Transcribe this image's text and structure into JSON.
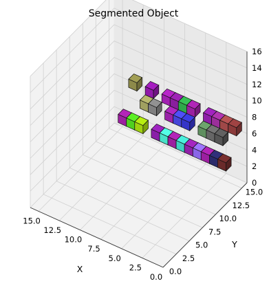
{
  "chart_data": {
    "type": "scatter",
    "subtype": "3d-voxels",
    "title": "Segmented Object",
    "xlabel": "X",
    "ylabel": "Y",
    "zlabel": "",
    "xlim": [
      0,
      16
    ],
    "ylim": [
      0,
      16
    ],
    "zlim": [
      0,
      16
    ],
    "x_ticks": [
      "0.0",
      "2.5",
      "5.0",
      "7.5",
      "10.0",
      "12.5",
      "15.0"
    ],
    "y_ticks": [
      "0.0",
      "2.5",
      "5.0",
      "7.5",
      "10.0",
      "12.5",
      "15.0"
    ],
    "z_ticks": [
      "0",
      "2",
      "4",
      "6",
      "8",
      "10",
      "12",
      "14",
      "16"
    ],
    "grid": true,
    "voxels": [
      {
        "x": 0,
        "y": 14,
        "z": 7,
        "color": "#8b3a3a"
      },
      {
        "x": 1,
        "y": 14,
        "z": 7,
        "color": "#a04848"
      },
      {
        "x": 2,
        "y": 14,
        "z": 7,
        "color": "#9b2f9b"
      },
      {
        "x": 3,
        "y": 14,
        "z": 7,
        "color": "#8e1fa8"
      },
      {
        "x": 5,
        "y": 14,
        "z": 7,
        "color": "#9a20a0"
      },
      {
        "x": 6,
        "y": 14,
        "z": 7,
        "color": "#2fa84a"
      },
      {
        "x": 7,
        "y": 14,
        "z": 7,
        "color": "#8a1e9e"
      },
      {
        "x": 8,
        "y": 14,
        "z": 7,
        "color": "#a020b0"
      },
      {
        "x": 10,
        "y": 14,
        "z": 7,
        "color": "#9019a8"
      },
      {
        "x": 12,
        "y": 14,
        "z": 7,
        "color": "#8d8a4a"
      },
      {
        "x": 1,
        "y": 13,
        "z": 6,
        "color": "#555555"
      },
      {
        "x": 2,
        "y": 13,
        "z": 6,
        "color": "#666666"
      },
      {
        "x": 3,
        "y": 13,
        "z": 6,
        "color": "#5f8f5f"
      },
      {
        "x": 5,
        "y": 13,
        "z": 6,
        "color": "#3535c8"
      },
      {
        "x": 6,
        "y": 13,
        "z": 6,
        "color": "#4545d8"
      },
      {
        "x": 7,
        "y": 13,
        "z": 6,
        "color": "#9a22a8"
      },
      {
        "x": 9,
        "y": 13,
        "z": 6,
        "color": "#7f7f7f"
      },
      {
        "x": 10,
        "y": 13,
        "z": 6,
        "color": "#a0a060"
      },
      {
        "x": 0,
        "y": 12,
        "z": 4,
        "color": "#6a2a2a"
      },
      {
        "x": 1,
        "y": 12,
        "z": 4,
        "color": "#2a2a6a"
      },
      {
        "x": 2,
        "y": 12,
        "z": 4,
        "color": "#9c1fa0"
      },
      {
        "x": 3,
        "y": 12,
        "z": 4,
        "color": "#8a66e8"
      },
      {
        "x": 4,
        "y": 12,
        "z": 4,
        "color": "#9020a8"
      },
      {
        "x": 5,
        "y": 12,
        "z": 4,
        "color": "#40d0c0"
      },
      {
        "x": 6,
        "y": 12,
        "z": 4,
        "color": "#9c1fa0"
      },
      {
        "x": 7,
        "y": 12,
        "z": 4,
        "color": "#48e0c8"
      },
      {
        "x": 8,
        "y": 12,
        "z": 4,
        "color": "#8a1ea8"
      },
      {
        "x": 10,
        "y": 12,
        "z": 4,
        "color": "#a0d010"
      },
      {
        "x": 11,
        "y": 12,
        "z": 4,
        "color": "#50d020"
      },
      {
        "x": 12,
        "y": 12,
        "z": 4,
        "color": "#9c20a0"
      }
    ]
  }
}
